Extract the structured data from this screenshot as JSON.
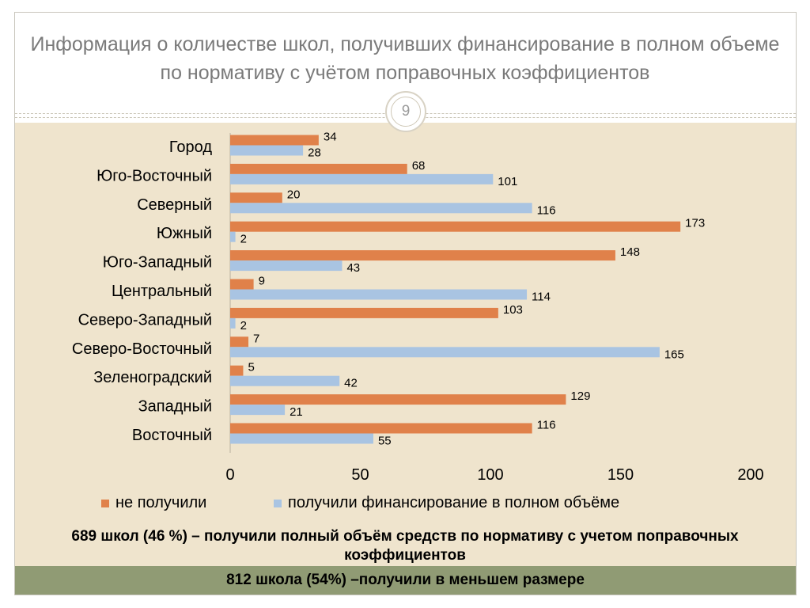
{
  "slide": {
    "title": "Информация о количестве школ, получивших финансирование в полном объеме по нормативу с учётом поправочных коэффициентов",
    "page_number": "9",
    "summary_1": "689 школ (46 %) – получили полный объём средств по нормативу с учетом поправочных коэффициентов",
    "summary_2": "812 школа (54%) –получили в меньшем размере"
  },
  "colors": {
    "not_received": "#e0814a",
    "received": "#a9c4e2",
    "panel": "#efe4cd",
    "bottom_bar": "#909b74"
  },
  "chart_data": {
    "type": "bar",
    "orientation": "horizontal",
    "categories": [
      "Город",
      "Юго-Восточный",
      "Северный",
      "Южный",
      "Юго-Западный",
      "Центральный",
      "Северо-Западный",
      "Северо-Восточный",
      "Зеленоградский",
      "Западный",
      "Восточный"
    ],
    "series": [
      {
        "name": "не получили",
        "values": [
          34,
          68,
          20,
          173,
          148,
          9,
          103,
          7,
          5,
          129,
          116
        ]
      },
      {
        "name": "получили финансирование в полном объёме",
        "values": [
          28,
          101,
          116,
          2,
          43,
          114,
          2,
          165,
          42,
          21,
          55
        ]
      }
    ],
    "xlim": [
      0,
      200
    ],
    "xticks": [
      "0",
      "50",
      "100",
      "150",
      "200"
    ],
    "grid": false,
    "legend_position": "bottom",
    "data_labels": true
  }
}
